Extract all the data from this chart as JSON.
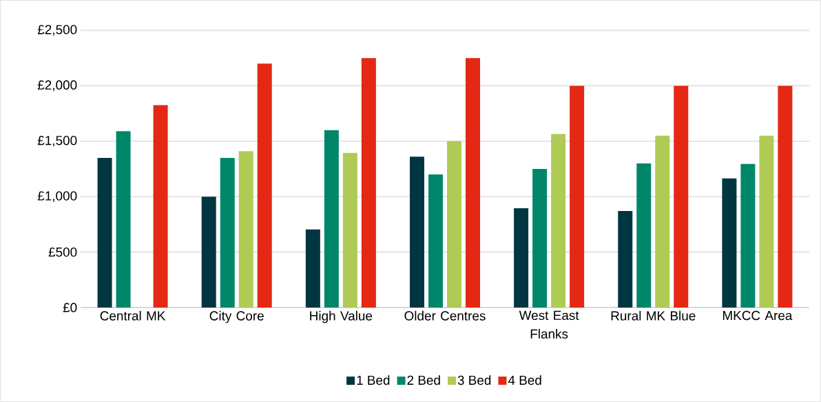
{
  "chart_data": {
    "type": "bar",
    "categories": [
      "Central MK",
      "City Core",
      "High Value",
      "Older Centres",
      "West East Flanks",
      "Rural MK Blue",
      "MKCC Area"
    ],
    "series": [
      {
        "name": "1 Bed",
        "color": "#003641",
        "values": [
          1350,
          1000,
          705,
          1360,
          895,
          870,
          1165
        ]
      },
      {
        "name": "2 Bed",
        "color": "#00876a",
        "values": [
          1590,
          1350,
          1600,
          1200,
          1250,
          1300,
          1295
        ]
      },
      {
        "name": "3 Bed",
        "color": "#b0cb55",
        "values": [
          null,
          1410,
          1395,
          1500,
          1565,
          1550,
          1550
        ]
      },
      {
        "name": "4 Bed",
        "color": "#e42814",
        "values": [
          1825,
          2200,
          2250,
          2250,
          2000,
          2000,
          2000
        ]
      }
    ],
    "ylim": [
      0,
      2500
    ],
    "yticks": [
      {
        "value": 0,
        "label": "£0"
      },
      {
        "value": 500,
        "label": "£500"
      },
      {
        "value": 1000,
        "label": "£1,000"
      },
      {
        "value": 1500,
        "label": "£1,500"
      },
      {
        "value": 2000,
        "label": "£2,000"
      },
      {
        "value": 2500,
        "label": "£2,500"
      }
    ],
    "grid": "y",
    "legend": "bottom"
  }
}
